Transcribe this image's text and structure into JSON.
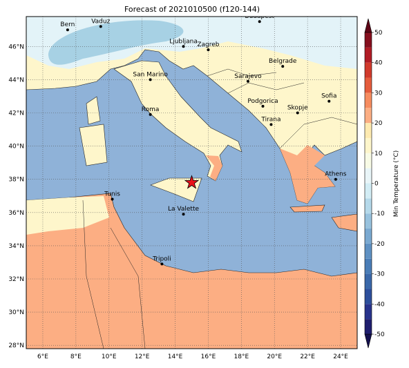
{
  "title": "Forecast of 2021010500 (f120-144)",
  "map": {
    "lon_range": [
      5,
      25
    ],
    "lat_range": [
      27.8,
      47.8
    ],
    "lon_ticks": [
      {
        "value": 6,
        "label": "6°E"
      },
      {
        "value": 8,
        "label": "8°E"
      },
      {
        "value": 10,
        "label": "10°E"
      },
      {
        "value": 12,
        "label": "12°E"
      },
      {
        "value": 14,
        "label": "14°E"
      },
      {
        "value": 16,
        "label": "16°E"
      },
      {
        "value": 18,
        "label": "18°E"
      },
      {
        "value": 20,
        "label": "20°E"
      },
      {
        "value": 22,
        "label": "22°E"
      },
      {
        "value": 24,
        "label": "24°E"
      }
    ],
    "lat_ticks": [
      {
        "value": 28,
        "label": "28°N"
      },
      {
        "value": 30,
        "label": "30°N"
      },
      {
        "value": 32,
        "label": "32°N"
      },
      {
        "value": 34,
        "label": "34°N"
      },
      {
        "value": 36,
        "label": "36°N"
      },
      {
        "value": 38,
        "label": "38°N"
      },
      {
        "value": 40,
        "label": "40°N"
      },
      {
        "value": 42,
        "label": "42°N"
      },
      {
        "value": 44,
        "label": "44°N"
      },
      {
        "value": 46,
        "label": "46°N"
      }
    ],
    "cities": [
      {
        "name": "Bern",
        "lon": 7.5,
        "lat": 47.0
      },
      {
        "name": "Vaduz",
        "lon": 9.5,
        "lat": 47.2
      },
      {
        "name": "Budapest",
        "lon": 19.1,
        "lat": 47.5
      },
      {
        "name": "Ljubljana",
        "lon": 14.5,
        "lat": 46.0
      },
      {
        "name": "Zagreb",
        "lon": 16.0,
        "lat": 45.8
      },
      {
        "name": "Belgrade",
        "lon": 20.5,
        "lat": 44.8
      },
      {
        "name": "San Marino",
        "lon": 12.5,
        "lat": 44.0
      },
      {
        "name": "Sarajevo",
        "lon": 18.4,
        "lat": 43.9
      },
      {
        "name": "Sofia",
        "lon": 23.3,
        "lat": 42.7
      },
      {
        "name": "Podgorica",
        "lon": 19.3,
        "lat": 42.4
      },
      {
        "name": "Roma",
        "lon": 12.5,
        "lat": 41.9
      },
      {
        "name": "Skopje",
        "lon": 21.4,
        "lat": 42.0
      },
      {
        "name": "Tirana",
        "lon": 19.8,
        "lat": 41.3
      },
      {
        "name": "Athens",
        "lon": 23.7,
        "lat": 38.0
      },
      {
        "name": "Tunis",
        "lon": 10.2,
        "lat": 36.8
      },
      {
        "name": "La Valette",
        "lon": 14.5,
        "lat": 35.9
      },
      {
        "name": "Tripoli",
        "lon": 13.2,
        "lat": 32.9
      }
    ],
    "marker": {
      "lon": 15.0,
      "lat": 37.8,
      "color": "#e8121b"
    }
  },
  "colorbar": {
    "label": "Min Temperature (°C)",
    "range": [
      -50,
      50
    ],
    "ticks": [
      -50,
      -40,
      -30,
      -20,
      -10,
      0,
      10,
      20,
      30,
      40,
      50
    ],
    "levels": [
      -50,
      -45,
      -40,
      -35,
      -30,
      -25,
      -20,
      -15,
      -10,
      -5,
      0,
      5,
      10,
      15,
      20,
      25,
      30,
      35,
      40,
      45,
      50
    ],
    "colors": [
      "#1f1e6e",
      "#28338c",
      "#2d4f9c",
      "#3a68a9",
      "#4a7db7",
      "#5f91c3",
      "#7aa9d1",
      "#98c2de",
      "#b5d9ea",
      "#d3edf5",
      "#e9f5f8",
      "#f8fbe6",
      "#fef6cb",
      "#feeab0",
      "#fcae83",
      "#f68c5f",
      "#e55c3c",
      "#d13a2c",
      "#b11c25",
      "#860f1e"
    ]
  }
}
